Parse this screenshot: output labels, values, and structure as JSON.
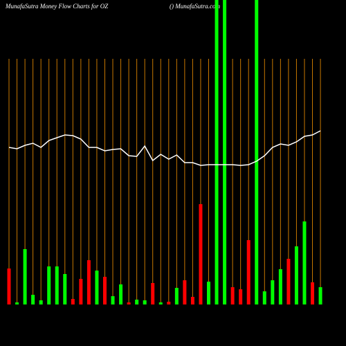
{
  "chart_data": {
    "type": "bar",
    "title": "MunafaSutra  Money Flow  Charts for OZ",
    "subtitle": "() MunafaSutra.com",
    "values": [
      52,
      3,
      80,
      14,
      6,
      55,
      55,
      44,
      8,
      37,
      64,
      49,
      40,
      12,
      29,
      3,
      7,
      6,
      31,
      3,
      4,
      24,
      35,
      11,
      145,
      33,
      440,
      440,
      25,
      22,
      93,
      440,
      19,
      35,
      51,
      66,
      84,
      120,
      32,
      25
    ],
    "colors": [
      "#ff0000",
      "#00ff00",
      "#00ff00",
      "#00ff00",
      "#00ff00",
      "#00ff00",
      "#00ff00",
      "#00ff00",
      "#ff0000",
      "#ff0000",
      "#ff0000",
      "#00ff00",
      "#ff0000",
      "#00ff00",
      "#00ff00",
      "#ff0000",
      "#00ff00",
      "#00ff00",
      "#ff0000",
      "#00ff00",
      "#ff0000",
      "#00ff00",
      "#ff0000",
      "#ff0000",
      "#ff0000",
      "#00ff00",
      "#00ff00",
      "#00ff00",
      "#ff0000",
      "#ff0000",
      "#ff0000",
      "#00ff00",
      "#00ff00",
      "#00ff00",
      "#00ff00",
      "#ff0000",
      "#00ff00",
      "#00ff00",
      "#ff0000",
      "#00ff00"
    ],
    "line_values": [
      227,
      225,
      230,
      233,
      227,
      237,
      241,
      245,
      244,
      239,
      227,
      227,
      222,
      224,
      225,
      215,
      214,
      229,
      208,
      217,
      210,
      216,
      205,
      205,
      201,
      202,
      202,
      202,
      202,
      201,
      202,
      207,
      215,
      227,
      232,
      230,
      235,
      243,
      245,
      251
    ],
    "line_color": "#ffffff",
    "grid_color": "#c87800",
    "ylim": [
      0,
      440
    ]
  }
}
